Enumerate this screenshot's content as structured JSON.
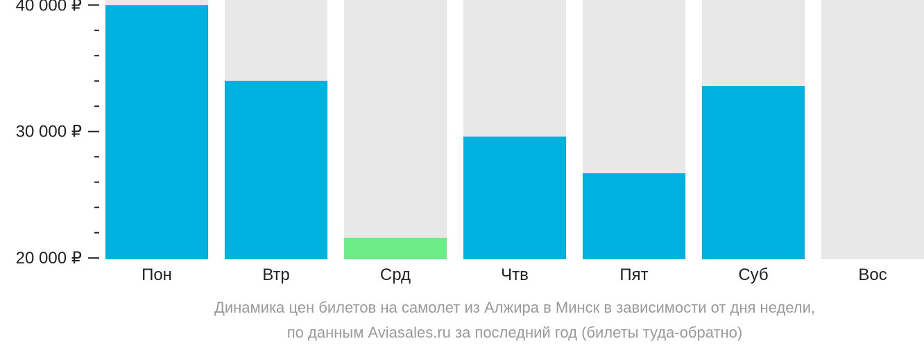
{
  "chart_data": {
    "type": "bar",
    "categories": [
      "Пон",
      "Втр",
      "Срд",
      "Чтв",
      "Пят",
      "Суб",
      "Вос"
    ],
    "values": [
      40000,
      34000,
      21600,
      29600,
      26700,
      33600,
      null
    ],
    "highlight": [
      false,
      false,
      true,
      false,
      false,
      false,
      false
    ],
    "ylim": [
      19900,
      40400
    ],
    "yticks": [
      {
        "value": 40000,
        "label": "40 000 ₽"
      },
      {
        "value": 30000,
        "label": "30 000 ₽"
      },
      {
        "value": 20000,
        "label": "20 000 ₽"
      }
    ],
    "minor_tick_step": 2000,
    "title": "",
    "xlabel": "",
    "ylabel": "",
    "colors": {
      "bar": "#00b0de",
      "highlight": "#6ded88",
      "background_column": "#e8e8e8",
      "axis": "#222222"
    }
  },
  "caption": {
    "line1": "Динамика цен билетов на самолет из Алжира в Минск в зависимости от дня недели,",
    "line2": "по данным Aviasales.ru за последний год (билеты туда-обратно)"
  }
}
